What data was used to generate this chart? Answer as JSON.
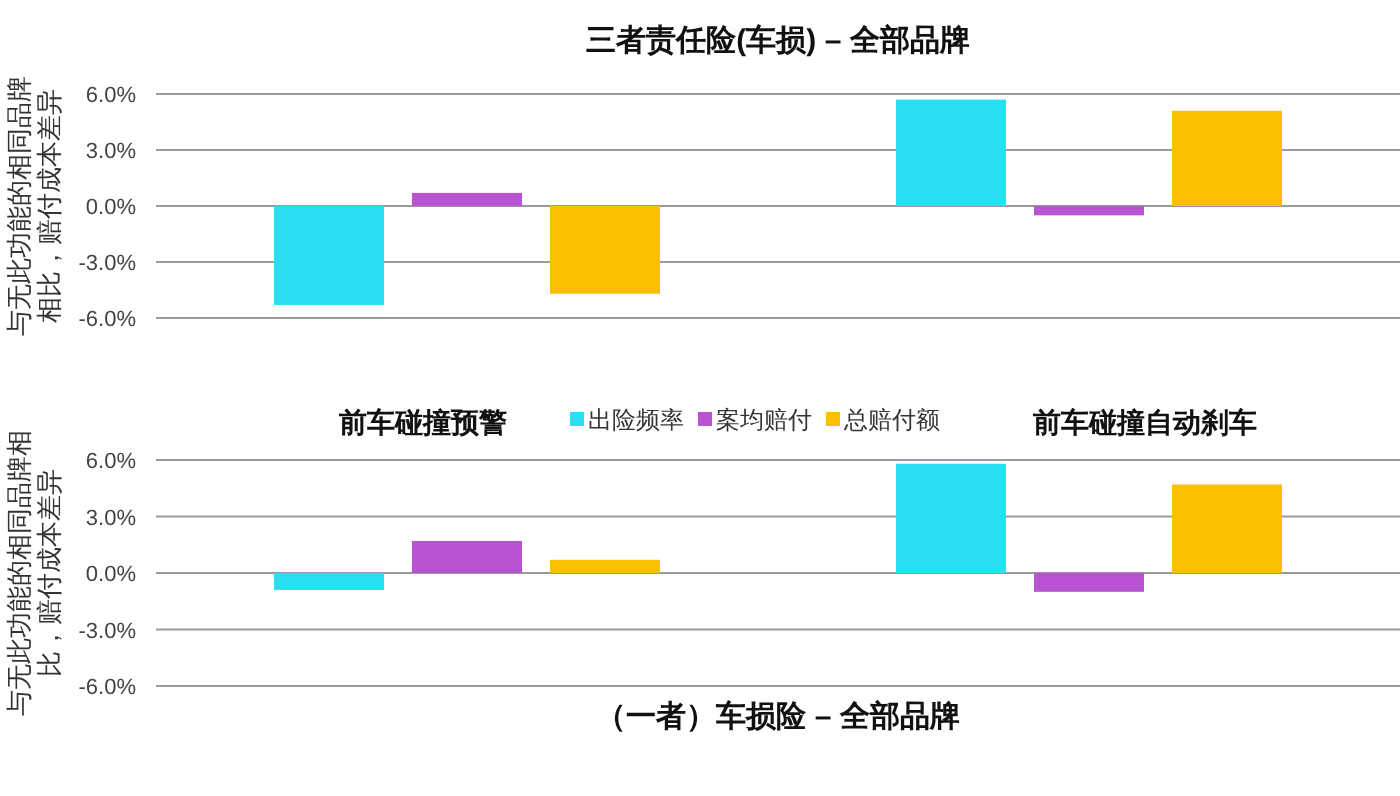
{
  "chart_data": [
    {
      "type": "bar",
      "title": "三者责任险(车损) – 全部品牌",
      "ylabel": "与无此功能的相同品牌相比，赔付成本差异",
      "categories": [
        null,
        null
      ],
      "series": [
        {
          "color": "#29e0f2",
          "values": [
            -5.3,
            5.7
          ]
        },
        {
          "color": "#b854d4",
          "values": [
            0.7,
            -0.5
          ]
        },
        {
          "color": "#fcbf00",
          "values": [
            -4.7,
            5.1
          ]
        }
      ],
      "ylim": [
        -6,
        6
      ],
      "yticks": [
        {
          "value": 6,
          "label": "6.0%"
        },
        {
          "value": 3,
          "label": "3.0%"
        },
        {
          "value": 0,
          "label": "0.0%"
        },
        {
          "value": -3,
          "label": "-3.0%"
        },
        {
          "value": -6,
          "label": "-6.0%"
        }
      ],
      "grid": "y",
      "tick_labels": "y"
    },
    {
      "type": "bar",
      "title": "（一者）车损险 – 全部品牌",
      "ylabel": "与无此功能的相同品牌相比，赔付成本差异",
      "categories": [
        "前车碰撞预警",
        "前车碰撞自动刹车"
      ],
      "series": [
        {
          "name": "出险频率",
          "color": "#29e0f2",
          "values": [
            -0.9,
            5.8
          ]
        },
        {
          "name": "案均赔付",
          "color": "#b854d4",
          "values": [
            1.7,
            -1.0
          ]
        },
        {
          "name": "总赔付额",
          "color": "#fcbf00",
          "values": [
            0.7,
            4.7
          ]
        }
      ],
      "ylim": [
        -6,
        6
      ],
      "yticks": [
        {
          "value": 6,
          "label": "6.0%"
        },
        {
          "value": 3,
          "label": "3.0%"
        },
        {
          "value": 0,
          "label": "0.0%"
        },
        {
          "value": -3,
          "label": "-3.0%"
        },
        {
          "value": -6,
          "label": "-6.0%"
        }
      ],
      "grid": "y",
      "legend": "top"
    }
  ]
}
